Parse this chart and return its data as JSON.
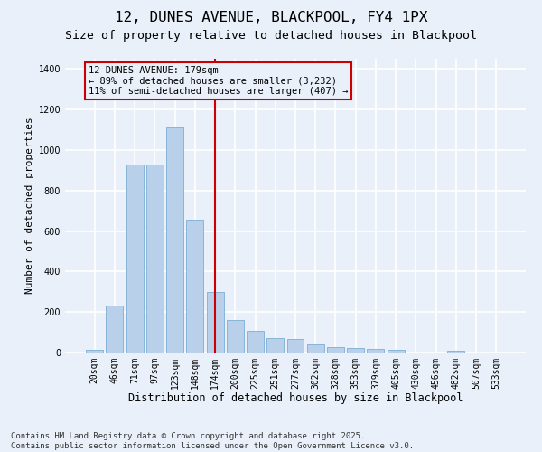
{
  "title": "12, DUNES AVENUE, BLACKPOOL, FY4 1PX",
  "subtitle": "Size of property relative to detached houses in Blackpool",
  "xlabel": "Distribution of detached houses by size in Blackpool",
  "ylabel": "Number of detached properties",
  "bar_color": "#b8d0ea",
  "bar_edge_color": "#7aadd4",
  "categories": [
    "20sqm",
    "46sqm",
    "71sqm",
    "97sqm",
    "123sqm",
    "148sqm",
    "174sqm",
    "200sqm",
    "225sqm",
    "251sqm",
    "277sqm",
    "302sqm",
    "328sqm",
    "353sqm",
    "379sqm",
    "405sqm",
    "430sqm",
    "456sqm",
    "482sqm",
    "507sqm",
    "533sqm"
  ],
  "values": [
    15,
    230,
    930,
    930,
    1110,
    655,
    300,
    160,
    105,
    70,
    65,
    40,
    25,
    22,
    20,
    15,
    0,
    0,
    10,
    0,
    0
  ],
  "vline_index": 6,
  "vline_color": "#cc0000",
  "annotation_text": "12 DUNES AVENUE: 179sqm\n← 89% of detached houses are smaller (3,232)\n11% of semi-detached houses are larger (407) →",
  "annotation_box_color": "#cc0000",
  "ylim": [
    0,
    1450
  ],
  "yticks": [
    0,
    200,
    400,
    600,
    800,
    1000,
    1200,
    1400
  ],
  "background_color": "#eaf0f9",
  "grid_color": "#ffffff",
  "footer_text": "Contains HM Land Registry data © Crown copyright and database right 2025.\nContains public sector information licensed under the Open Government Licence v3.0.",
  "title_fontsize": 11.5,
  "subtitle_fontsize": 9.5,
  "xlabel_fontsize": 8.5,
  "ylabel_fontsize": 8,
  "tick_fontsize": 7,
  "footer_fontsize": 6.5,
  "ann_fontsize": 7.5
}
